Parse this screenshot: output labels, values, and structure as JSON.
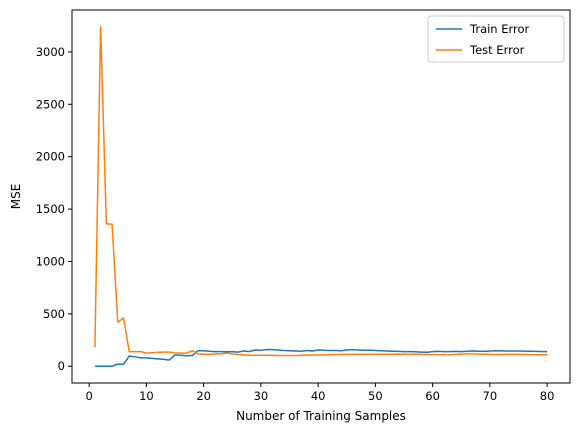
{
  "chart_data": {
    "type": "line",
    "title": "",
    "xlabel": "Number of Training Samples",
    "ylabel": "MSE",
    "xlim": [
      -3,
      84
    ],
    "ylim": [
      -160,
      3400
    ],
    "xticks": [
      0,
      10,
      20,
      30,
      40,
      50,
      60,
      70,
      80
    ],
    "yticks": [
      0,
      500,
      1000,
      1500,
      2000,
      2500,
      3000
    ],
    "grid": false,
    "legend_position": "top-right",
    "series": [
      {
        "name": "Train Error",
        "color": "#1f77b4",
        "x": [
          1,
          2,
          3,
          4,
          5,
          6,
          7,
          8,
          9,
          10,
          11,
          12,
          13,
          14,
          15,
          16,
          17,
          18,
          19,
          20,
          21,
          22,
          23,
          24,
          25,
          26,
          27,
          28,
          29,
          30,
          31,
          32,
          33,
          34,
          35,
          36,
          37,
          38,
          39,
          40,
          41,
          42,
          43,
          44,
          45,
          46,
          47,
          48,
          49,
          50,
          51,
          52,
          53,
          54,
          55,
          56,
          57,
          58,
          59,
          60,
          61,
          62,
          63,
          64,
          65,
          66,
          67,
          68,
          69,
          70,
          71,
          72,
          73,
          74,
          75,
          76,
          77,
          78,
          79,
          80
        ],
        "y": [
          0,
          0,
          0,
          0,
          20,
          18,
          98,
          90,
          80,
          80,
          75,
          70,
          65,
          60,
          108,
          105,
          100,
          102,
          148,
          148,
          143,
          140,
          140,
          138,
          140,
          135,
          145,
          140,
          155,
          152,
          160,
          158,
          155,
          150,
          148,
          145,
          143,
          150,
          145,
          155,
          152,
          150,
          150,
          148,
          155,
          158,
          155,
          152,
          152,
          150,
          148,
          145,
          143,
          142,
          140,
          140,
          138,
          135,
          133,
          140,
          142,
          140,
          140,
          142,
          140,
          143,
          145,
          143,
          142,
          145,
          148,
          147,
          146,
          146,
          145,
          144,
          143,
          142,
          141,
          140
        ]
      },
      {
        "name": "Test Error",
        "color": "#ff7f0e",
        "x": [
          1,
          2,
          3,
          4,
          5,
          6,
          7,
          8,
          9,
          10,
          11,
          12,
          13,
          14,
          15,
          16,
          17,
          18,
          19,
          20,
          21,
          22,
          23,
          24,
          25,
          26,
          27,
          28,
          29,
          30,
          31,
          32,
          33,
          34,
          35,
          36,
          37,
          38,
          39,
          40,
          41,
          42,
          43,
          44,
          45,
          46,
          47,
          48,
          49,
          50,
          51,
          52,
          53,
          54,
          55,
          56,
          57,
          58,
          59,
          60,
          61,
          62,
          63,
          64,
          65,
          66,
          67,
          68,
          69,
          70,
          71,
          72,
          73,
          74,
          75,
          76,
          77,
          78,
          79,
          80
        ],
        "y": [
          180,
          3240,
          1360,
          1355,
          420,
          460,
          140,
          140,
          140,
          125,
          130,
          132,
          135,
          135,
          128,
          125,
          125,
          148,
          118,
          115,
          115,
          118,
          118,
          125,
          118,
          112,
          110,
          105,
          105,
          105,
          105,
          105,
          103,
          103,
          103,
          103,
          105,
          106,
          107,
          108,
          110,
          110,
          112,
          113,
          113,
          113,
          114,
          115,
          115,
          115,
          114,
          114,
          115,
          116,
          115,
          115,
          114,
          113,
          112,
          112,
          111,
          111,
          110,
          113,
          116,
          118,
          118,
          116,
          114,
          113,
          112,
          112,
          113,
          113,
          113,
          112,
          111,
          110,
          110,
          110
        ]
      }
    ]
  }
}
